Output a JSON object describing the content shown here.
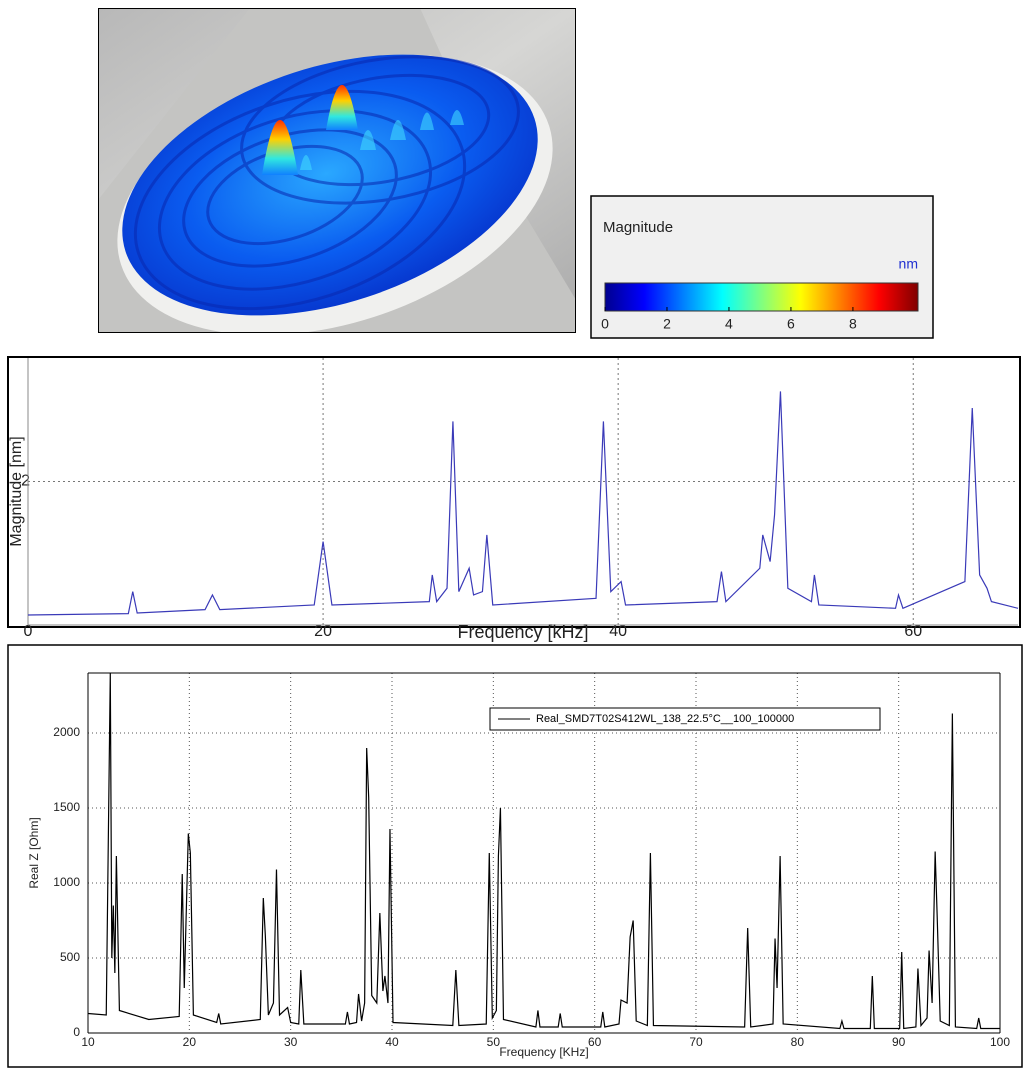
{
  "chart_data": [
    {
      "type": "colorbar",
      "title": "Magnitude",
      "unit": "nm",
      "colors": [
        "#00008f",
        "#0000ff",
        "#0080ff",
        "#00ffff",
        "#80ff80",
        "#ffff00",
        "#ff8000",
        "#ff0000",
        "#800000"
      ],
      "xlim": [
        0,
        10.1
      ],
      "xticks": [
        0,
        2,
        4,
        6,
        8
      ]
    },
    {
      "type": "line",
      "xlabel": "Frequency [kHz]",
      "ylabel": "Magnitude [nm]",
      "color": "#3a3ab8",
      "grid": true,
      "xlim": [
        0,
        67.1
      ],
      "xticks": [
        0,
        20,
        40,
        60
      ],
      "ylim": [
        -0.15,
        3.85
      ],
      "yticks": [
        2
      ],
      "x": [
        0,
        6.8,
        7.1,
        7.4,
        12.0,
        12.5,
        13.0,
        19.4,
        20.0,
        20.6,
        27.2,
        27.4,
        27.7,
        28.4,
        28.8,
        29.2,
        29.9,
        30.2,
        30.8,
        31.1,
        31.5,
        38.5,
        39.0,
        39.5,
        40.2,
        40.5,
        46.7,
        47.0,
        47.3,
        49.6,
        49.8,
        50.3,
        50.6,
        51.0,
        51.5,
        53.1,
        53.3,
        53.6,
        58.8,
        59.0,
        59.3,
        63.5,
        64.0,
        64.5,
        65.0,
        65.3,
        67.1
      ],
      "values": [
        0,
        0.02,
        0.35,
        0.03,
        0.08,
        0.3,
        0.08,
        0.15,
        1.1,
        0.15,
        0.2,
        0.6,
        0.2,
        0.4,
        2.9,
        0.35,
        0.7,
        0.3,
        0.35,
        1.2,
        0.15,
        0.25,
        2.9,
        0.35,
        0.5,
        0.15,
        0.2,
        0.65,
        0.2,
        0.7,
        1.2,
        0.8,
        1.5,
        3.35,
        0.4,
        0.2,
        0.6,
        0.15,
        0.1,
        0.3,
        0.1,
        0.5,
        3.1,
        0.6,
        0.4,
        0.2,
        0.1
      ]
    },
    {
      "type": "line",
      "xlabel": "Frequency [KHz]",
      "ylabel": "Real Z [Ohm]",
      "grid": true,
      "legend": "upper right",
      "xlim": [
        10,
        100
      ],
      "xticks": [
        10,
        20,
        30,
        40,
        50,
        60,
        70,
        80,
        90,
        100
      ],
      "ylim": [
        0,
        2400
      ],
      "yticks": [
        0,
        500,
        1000,
        1500,
        2000
      ],
      "x": [
        10,
        11.8,
        12.2,
        12.35,
        12.5,
        12.65,
        12.8,
        13.1,
        16,
        19.0,
        19.3,
        19.5,
        19.9,
        20.1,
        20.4,
        22.7,
        22.9,
        23.1,
        27.0,
        27.3,
        27.5,
        27.8,
        28.3,
        28.6,
        28.9,
        29.7,
        30.0,
        30.8,
        31.0,
        31.3,
        35.4,
        35.6,
        35.8,
        36.5,
        36.7,
        37.0,
        37.3,
        37.5,
        37.7,
        38.0,
        38.5,
        38.8,
        39.1,
        39.3,
        39.6,
        39.8,
        40.1,
        46.0,
        46.3,
        46.6,
        49.3,
        49.6,
        49.9,
        50.3,
        50.5,
        50.7,
        51.0,
        54.2,
        54.4,
        54.6,
        56.4,
        56.6,
        56.8,
        60.6,
        60.8,
        61.0,
        62.4,
        62.6,
        63.2,
        63.5,
        63.8,
        64.1,
        65.2,
        65.5,
        65.8,
        74.8,
        75.1,
        75.4,
        77.6,
        77.8,
        78.0,
        78.3,
        78.6,
        84.2,
        84.4,
        84.6,
        87.2,
        87.4,
        87.6,
        90.1,
        90.3,
        90.5,
        91.7,
        91.9,
        92.2,
        92.8,
        93.0,
        93.3,
        93.6,
        93.8,
        94.1,
        95.0,
        95.3,
        95.6,
        97.7,
        97.9,
        98.1,
        100
      ],
      "series": [
        {
          "name": "Real_SMD7T02S412WL_138_22.5°C__100_100000",
          "color": "#000000",
          "values": [
            130,
            120,
            2400,
            500,
            850,
            400,
            1180,
            150,
            90,
            110,
            1060,
            300,
            1330,
            1200,
            120,
            70,
            130,
            60,
            90,
            900,
            650,
            120,
            200,
            1090,
            120,
            170,
            70,
            60,
            420,
            60,
            60,
            140,
            60,
            70,
            260,
            80,
            200,
            1900,
            1570,
            250,
            200,
            800,
            280,
            380,
            200,
            1360,
            70,
            50,
            420,
            50,
            60,
            1200,
            100,
            150,
            1180,
            1500,
            90,
            40,
            150,
            40,
            40,
            130,
            40,
            40,
            140,
            40,
            60,
            220,
            200,
            640,
            750,
            80,
            50,
            1200,
            50,
            40,
            700,
            40,
            60,
            630,
            300,
            1180,
            60,
            30,
            80,
            30,
            30,
            380,
            30,
            30,
            540,
            30,
            40,
            430,
            50,
            100,
            550,
            200,
            1210,
            780,
            80,
            50,
            2130,
            40,
            30,
            100,
            30,
            30
          ]
        }
      ]
    }
  ]
}
